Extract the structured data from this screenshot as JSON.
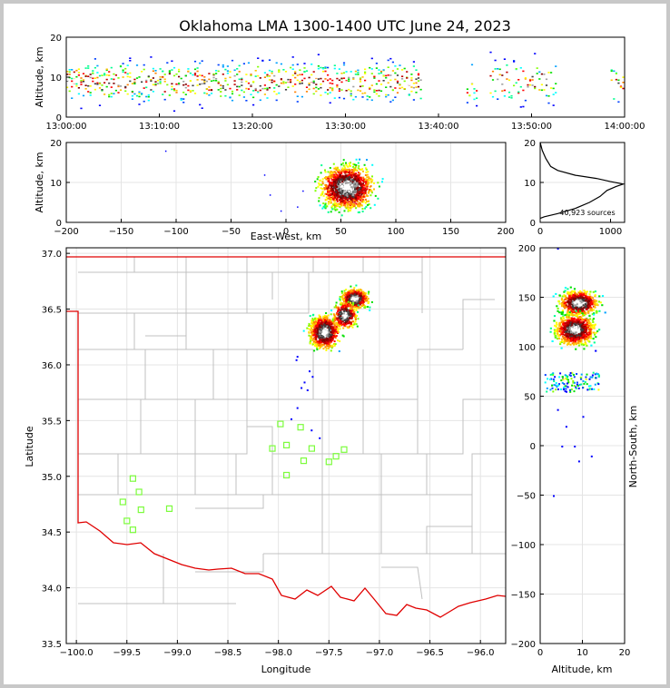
{
  "figure": {
    "title": "Oklahoma LMA 1300-1400 UTC June 24, 2023"
  },
  "colors": {
    "ok_border": "#e00000",
    "counties": "#c0c0c0",
    "stations": "#7cfc3c",
    "axis": "#000000",
    "grid": "#e4e4e4"
  },
  "chart_data": [
    {
      "type": "scatter",
      "name": "time-height",
      "ylabel": "Altitude, km",
      "ylim": [
        0,
        20
      ],
      "xlim": [
        "13:00:00",
        "14:00:00"
      ],
      "xticks": [
        "13:00:00",
        "13:10:00",
        "13:20:00",
        "13:30:00",
        "13:40:00",
        "13:50:00",
        "14:00:00"
      ],
      "yticks": [
        0,
        10,
        20
      ],
      "activity_bands_minutes": [
        [
          0,
          38
        ],
        [
          43,
          44
        ],
        [
          45.5,
          52.5
        ],
        [
          58.5,
          60
        ]
      ]
    },
    {
      "type": "scatter",
      "name": "east-west-altitude",
      "xlabel": "East-West, km",
      "ylabel": "Altitude, km",
      "xlim": [
        -200,
        200
      ],
      "ylim": [
        0,
        20
      ],
      "xticks": [
        -200,
        -150,
        -100,
        -50,
        0,
        50,
        100,
        150,
        200
      ],
      "yticks": [
        0,
        10,
        20
      ],
      "core_center_km": [
        55,
        9
      ]
    },
    {
      "type": "line",
      "name": "altitude-histogram",
      "xlim": [
        0,
        1200
      ],
      "ylim": [
        0,
        20
      ],
      "xticks": [
        0,
        1000
      ],
      "yticks": [
        0,
        10,
        20
      ],
      "annotation": "40,923 sources",
      "profile": [
        [
          0,
          1
        ],
        [
          60,
          1.4
        ],
        [
          250,
          2.2
        ],
        [
          500,
          3.5
        ],
        [
          700,
          5
        ],
        [
          850,
          6.5
        ],
        [
          950,
          8
        ],
        [
          1080,
          9
        ],
        [
          1180,
          9.6
        ],
        [
          1000,
          10.2
        ],
        [
          800,
          11
        ],
        [
          500,
          11.8
        ],
        [
          250,
          13
        ],
        [
          150,
          14
        ],
        [
          80,
          16
        ],
        [
          30,
          18
        ],
        [
          0,
          20
        ]
      ]
    },
    {
      "type": "scatter",
      "name": "plan-view",
      "xlabel": "Longitude",
      "ylabel": "Latitude",
      "xlim": [
        -100.1,
        -95.75
      ],
      "ylim": [
        33.5,
        37.05
      ],
      "xticks": [
        -100.0,
        -99.5,
        -99.0,
        -98.5,
        -98.0,
        -97.5,
        -97.0,
        -96.5,
        -96.0
      ],
      "yticks": [
        33.5,
        34.0,
        34.5,
        35.0,
        35.5,
        36.0,
        36.5,
        37.0
      ],
      "xtick_labels": [
        "−100.0",
        "−99.5",
        "−99.0",
        "−98.5",
        "−98.0",
        "−97.5",
        "−97.0",
        "−96.5",
        "−96.0"
      ],
      "yticks_labels": [
        "33.5",
        "34.0",
        "34.5",
        "35.0",
        "35.5",
        "36.0",
        "36.5",
        "37.0"
      ],
      "stations": [
        [
          -97.98,
          35.47
        ],
        [
          -97.78,
          35.44
        ],
        [
          -98.06,
          35.25
        ],
        [
          -97.92,
          35.28
        ],
        [
          -97.67,
          35.25
        ],
        [
          -97.35,
          35.24
        ],
        [
          -97.75,
          35.14
        ],
        [
          -97.43,
          35.18
        ],
        [
          -97.5,
          35.13
        ],
        [
          -97.92,
          35.01
        ],
        [
          -99.44,
          34.98
        ],
        [
          -99.38,
          34.86
        ],
        [
          -99.54,
          34.77
        ],
        [
          -99.36,
          34.7
        ],
        [
          -99.08,
          34.71
        ],
        [
          -99.5,
          34.6
        ],
        [
          -99.44,
          34.52
        ]
      ]
    },
    {
      "type": "scatter",
      "name": "altitude-north-south",
      "xlabel": "Altitude, km",
      "ylabel": "North-South, km",
      "xlim": [
        0,
        20
      ],
      "ylim": [
        -200,
        200
      ],
      "xticks": [
        0,
        10,
        20
      ],
      "yticks": [
        -200,
        -150,
        -100,
        -50,
        0,
        50,
        100,
        150,
        200
      ]
    }
  ]
}
